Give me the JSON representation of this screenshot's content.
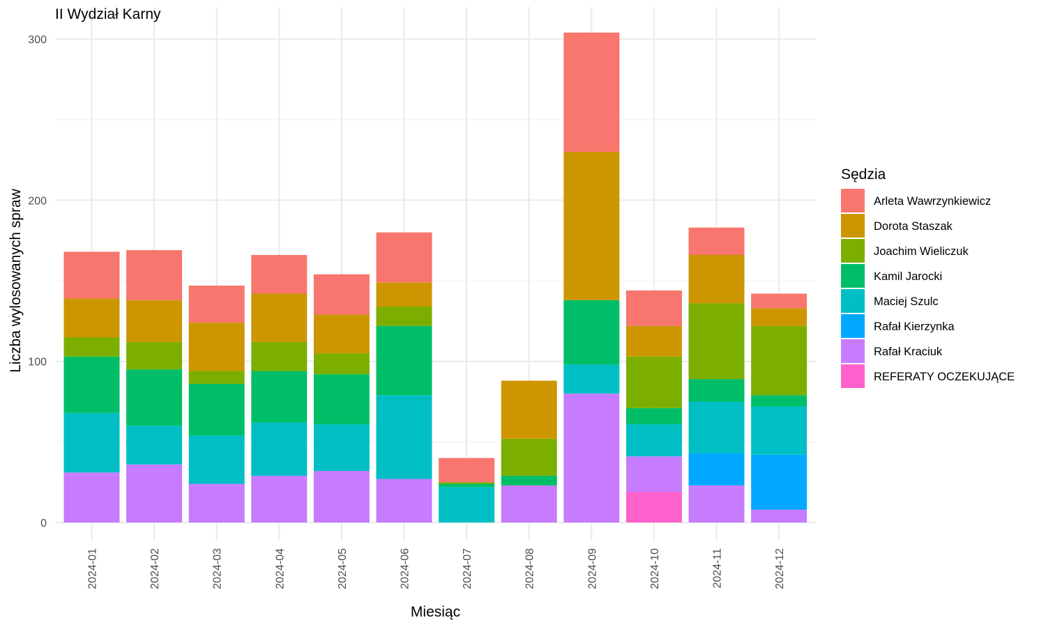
{
  "chart_data": {
    "type": "bar",
    "stacked": true,
    "title": "II Wydział Karny",
    "xlabel": "Miesiąc",
    "ylabel": "Liczba wylosowanych spraw",
    "legend_title": "Sędzia",
    "legend_position": "right",
    "grid": true,
    "ylim": [
      0,
      300
    ],
    "y_ticks": [
      0,
      100,
      200,
      300
    ],
    "categories": [
      "2024-01",
      "2024-02",
      "2024-03",
      "2024-04",
      "2024-05",
      "2024-06",
      "2024-07",
      "2024-08",
      "2024-09",
      "2024-10",
      "2024-11",
      "2024-12"
    ],
    "series": [
      {
        "name": "Arleta Wawrzynkiewicz",
        "color": "#F8766D",
        "values": [
          29,
          31,
          23,
          24,
          25,
          31,
          15,
          0,
          74,
          22,
          17,
          9
        ]
      },
      {
        "name": "Dorota Staszak",
        "color": "#CD9600",
        "values": [
          24,
          26,
          30,
          30,
          24,
          15,
          0,
          36,
          92,
          19,
          30,
          11
        ]
      },
      {
        "name": "Joachim Wieliczuk",
        "color": "#7CAE00",
        "values": [
          12,
          17,
          8,
          18,
          13,
          12,
          1,
          23,
          0,
          32,
          47,
          43
        ]
      },
      {
        "name": "Kamil Jarocki",
        "color": "#00BE67",
        "values": [
          35,
          35,
          32,
          32,
          31,
          43,
          2,
          6,
          40,
          10,
          14,
          7
        ]
      },
      {
        "name": "Maciej Szulc",
        "color": "#00BFC4",
        "values": [
          37,
          24,
          30,
          33,
          29,
          52,
          22,
          0,
          18,
          20,
          32,
          30
        ]
      },
      {
        "name": "Rafał Kierzynka",
        "color": "#00A9FF",
        "values": [
          0,
          0,
          0,
          0,
          0,
          0,
          0,
          0,
          0,
          0,
          20,
          34
        ]
      },
      {
        "name": "Rafał Kraciuk",
        "color": "#C77CFF",
        "values": [
          31,
          36,
          24,
          29,
          32,
          27,
          0,
          23,
          80,
          22,
          23,
          8
        ]
      },
      {
        "name": "REFERATY OCZEKUJĄCE",
        "color": "#FF61CC",
        "values": [
          0,
          0,
          0,
          0,
          0,
          0,
          0,
          0,
          0,
          19,
          0,
          0
        ]
      }
    ]
  }
}
